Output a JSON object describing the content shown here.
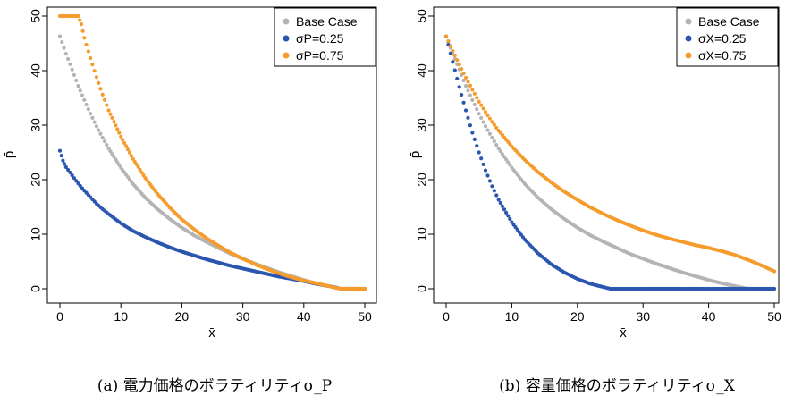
{
  "colors": {
    "base": "#b4b4b4",
    "low": "#2a56b0",
    "high": "#f59c2c",
    "axis": "#000000"
  },
  "chart_data": [
    {
      "type": "scatter",
      "panel": "a",
      "caption": "(a) 電力価格のボラティリティσ_P",
      "xlabel": "x̄",
      "ylabel": "p̄",
      "xlim": [
        0,
        50
      ],
      "ylim": [
        0,
        50
      ],
      "xticks": [
        "0",
        "10",
        "20",
        "30",
        "40",
        "50"
      ],
      "yticks": [
        "0",
        "10",
        "20",
        "30",
        "40",
        "50"
      ],
      "legend_position": "top-right",
      "grid": false,
      "series": [
        {
          "name": "Base Case",
          "color_key": "base",
          "points": [
            [
              0,
              46.3
            ],
            [
              1,
              43.1
            ],
            [
              2,
              40.2
            ],
            [
              3,
              37.2
            ],
            [
              4,
              34.6
            ],
            [
              5,
              32.1
            ],
            [
              6,
              29.8
            ],
            [
              7,
              27.7
            ],
            [
              8,
              25.7
            ],
            [
              10,
              22.2
            ],
            [
              12,
              19.2
            ],
            [
              14,
              16.7
            ],
            [
              16,
              14.6
            ],
            [
              18,
              12.8
            ],
            [
              20,
              11.2
            ],
            [
              22,
              9.8
            ],
            [
              24,
              8.6
            ],
            [
              26,
              7.5
            ],
            [
              28,
              6.4
            ],
            [
              30,
              5.5
            ],
            [
              32,
              4.6
            ],
            [
              34,
              3.8
            ],
            [
              36,
              3.0
            ],
            [
              38,
              2.3
            ],
            [
              40,
              1.6
            ],
            [
              42,
              1.0
            ],
            [
              44,
              0.5
            ],
            [
              45,
              0.25
            ],
            [
              46,
              0
            ],
            [
              48,
              0
            ],
            [
              50,
              0
            ]
          ]
        },
        {
          "name": "σP=0.25",
          "color_key": "low",
          "points": [
            [
              0,
              25.3
            ],
            [
              0.5,
              23.5
            ],
            [
              1,
              22.3
            ],
            [
              2,
              20.8
            ],
            [
              3,
              19.3
            ],
            [
              4,
              18.0
            ],
            [
              5,
              16.8
            ],
            [
              6,
              15.6
            ],
            [
              7,
              14.6
            ],
            [
              8,
              13.7
            ],
            [
              10,
              12.0
            ],
            [
              12,
              10.6
            ],
            [
              14,
              9.5
            ],
            [
              16,
              8.5
            ],
            [
              18,
              7.6
            ],
            [
              20,
              6.8
            ],
            [
              22,
              6.1
            ],
            [
              24,
              5.4
            ],
            [
              26,
              4.8
            ],
            [
              28,
              4.2
            ],
            [
              30,
              3.7
            ],
            [
              32,
              3.2
            ],
            [
              34,
              2.7
            ],
            [
              36,
              2.2
            ],
            [
              38,
              1.8
            ],
            [
              40,
              1.4
            ],
            [
              42,
              0.9
            ],
            [
              44,
              0.5
            ],
            [
              45,
              0.3
            ],
            [
              46,
              0
            ],
            [
              48,
              0
            ],
            [
              50,
              0
            ]
          ]
        },
        {
          "name": "σP=0.75",
          "color_key": "high",
          "points": [
            [
              0,
              50
            ],
            [
              1,
              50
            ],
            [
              2,
              50
            ],
            [
              3,
              50
            ],
            [
              3.5,
              48.5
            ],
            [
              4,
              46.0
            ],
            [
              5,
              42.3
            ],
            [
              6,
              38.8
            ],
            [
              7,
              35.6
            ],
            [
              8,
              32.7
            ],
            [
              10,
              27.9
            ],
            [
              12,
              23.8
            ],
            [
              14,
              20.3
            ],
            [
              16,
              17.4
            ],
            [
              18,
              14.9
            ],
            [
              20,
              12.7
            ],
            [
              22,
              10.9
            ],
            [
              24,
              9.3
            ],
            [
              26,
              7.9
            ],
            [
              28,
              6.6
            ],
            [
              30,
              5.5
            ],
            [
              32,
              4.5
            ],
            [
              34,
              3.6
            ],
            [
              36,
              2.8
            ],
            [
              38,
              2.1
            ],
            [
              40,
              1.5
            ],
            [
              42,
              1.0
            ],
            [
              44,
              0.5
            ],
            [
              45,
              0.25
            ],
            [
              46,
              0
            ],
            [
              48,
              0
            ],
            [
              50,
              0
            ]
          ]
        }
      ]
    },
    {
      "type": "scatter",
      "panel": "b",
      "caption": "(b) 容量価格のボラティリティσ_X",
      "xlabel": "x̄",
      "ylabel": "p̄",
      "xlim": [
        0,
        50
      ],
      "ylim": [
        0,
        50
      ],
      "xticks": [
        "0",
        "10",
        "20",
        "30",
        "40",
        "50"
      ],
      "yticks": [
        "0",
        "10",
        "20",
        "30",
        "40",
        "50"
      ],
      "legend_position": "top-right",
      "grid": false,
      "series": [
        {
          "name": "Base Case",
          "color_key": "base",
          "points": [
            [
              0,
              46.3
            ],
            [
              1,
              43.1
            ],
            [
              2,
              40.2
            ],
            [
              3,
              37.2
            ],
            [
              4,
              34.6
            ],
            [
              5,
              32.1
            ],
            [
              6,
              29.8
            ],
            [
              7,
              27.7
            ],
            [
              8,
              25.7
            ],
            [
              10,
              22.2
            ],
            [
              12,
              19.2
            ],
            [
              14,
              16.7
            ],
            [
              16,
              14.6
            ],
            [
              18,
              12.8
            ],
            [
              20,
              11.2
            ],
            [
              22,
              9.8
            ],
            [
              24,
              8.6
            ],
            [
              26,
              7.5
            ],
            [
              28,
              6.4
            ],
            [
              30,
              5.5
            ],
            [
              32,
              4.6
            ],
            [
              34,
              3.8
            ],
            [
              36,
              3.0
            ],
            [
              38,
              2.3
            ],
            [
              40,
              1.6
            ],
            [
              42,
              1.0
            ],
            [
              44,
              0.5
            ],
            [
              45,
              0.25
            ],
            [
              46,
              0
            ],
            [
              48,
              0
            ],
            [
              50,
              0
            ]
          ]
        },
        {
          "name": "σX=0.25",
          "color_key": "low",
          "points": [
            [
              0,
              46.3
            ],
            [
              1,
              41.6
            ],
            [
              2,
              37.0
            ],
            [
              3,
              32.7
            ],
            [
              4,
              28.6
            ],
            [
              5,
              25.0
            ],
            [
              6,
              21.7
            ],
            [
              7,
              18.8
            ],
            [
              8,
              16.3
            ],
            [
              10,
              12.2
            ],
            [
              12,
              9.0
            ],
            [
              14,
              6.5
            ],
            [
              16,
              4.5
            ],
            [
              18,
              3.0
            ],
            [
              20,
              1.8
            ],
            [
              22,
              0.9
            ],
            [
              24,
              0.3
            ],
            [
              25,
              0
            ],
            [
              30,
              0
            ],
            [
              35,
              0
            ],
            [
              40,
              0
            ],
            [
              45,
              0
            ],
            [
              50,
              0
            ]
          ]
        },
        {
          "name": "σX=0.75",
          "color_key": "high",
          "points": [
            [
              0,
              46.3
            ],
            [
              1,
              43.6
            ],
            [
              2,
              41.1
            ],
            [
              3,
              38.7
            ],
            [
              4,
              36.5
            ],
            [
              5,
              34.3
            ],
            [
              6,
              32.4
            ],
            [
              7,
              30.6
            ],
            [
              8,
              29.0
            ],
            [
              10,
              26.1
            ],
            [
              12,
              23.6
            ],
            [
              14,
              21.4
            ],
            [
              16,
              19.5
            ],
            [
              18,
              17.8
            ],
            [
              20,
              16.3
            ],
            [
              22,
              14.9
            ],
            [
              24,
              13.7
            ],
            [
              26,
              12.6
            ],
            [
              28,
              11.6
            ],
            [
              30,
              10.7
            ],
            [
              32,
              9.9
            ],
            [
              34,
              9.2
            ],
            [
              36,
              8.6
            ],
            [
              38,
              8.0
            ],
            [
              40,
              7.5
            ],
            [
              42,
              6.9
            ],
            [
              44,
              6.2
            ],
            [
              46,
              5.3
            ],
            [
              48,
              4.3
            ],
            [
              50,
              3.2
            ]
          ]
        }
      ]
    }
  ]
}
